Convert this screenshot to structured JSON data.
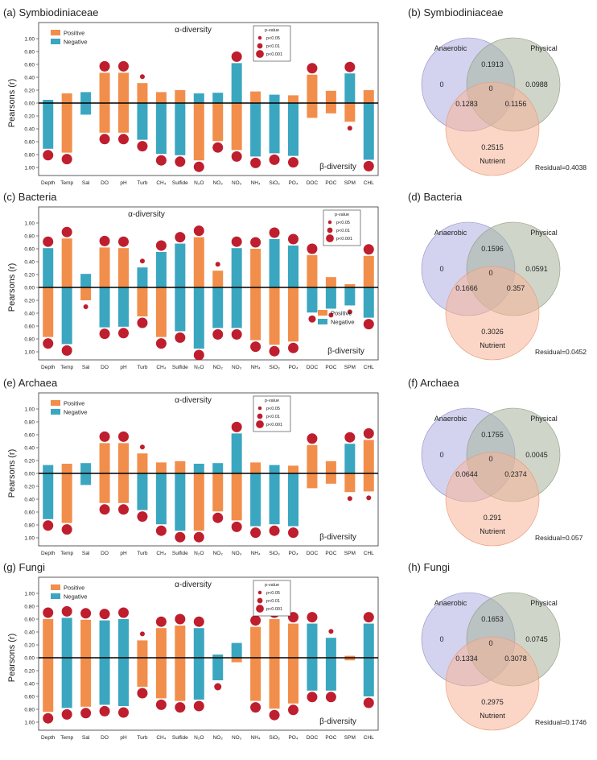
{
  "colors": {
    "positive": "#F28E4B",
    "negative": "#3BA6C0",
    "dot": "#BE1E2D",
    "anaerobic": "#A8A8E0",
    "physical": "#A7B59C",
    "nutrient": "#F7B597"
  },
  "common": {
    "ylabel": "Pearsons (r)",
    "yticks": [
      "1.00",
      "0.80",
      "0.60",
      "0.40",
      "0.20",
      "0.00",
      "0.20",
      "0.40",
      "0.60",
      "0.80",
      "1.00"
    ],
    "categories": [
      "Depth",
      "Temp",
      "Sal",
      "DO",
      "pH",
      "Turb",
      "CH₄",
      "Sulfide",
      "N₂O",
      "NO₂",
      "NO₃",
      "NH₄",
      "SiO₃",
      "PO₄",
      "DOC",
      "POC",
      "SPM",
      "CHL"
    ],
    "legend_positive": "Positive",
    "legend_negative": "Negative",
    "pvalue_title": "p-value",
    "pvalue_labels": [
      "p<0.05",
      "p<0.01",
      "p<0.001"
    ],
    "alpha_label": "α-diversity",
    "beta_label": "β-diversity",
    "venn_labels": {
      "anaerobic": "Anaerobic",
      "physical": "Physical",
      "nutrient": "Nutrient"
    }
  },
  "chart_data": [
    {
      "type": "bar",
      "title": "(a) Symbiodiniaceae",
      "ylim": [
        -1,
        1
      ],
      "alpha": {
        "values": [
          0.05,
          0.15,
          0.17,
          0.47,
          0.47,
          0.31,
          0.17,
          0.2,
          0.15,
          0.16,
          0.62,
          0.18,
          0.13,
          0.12,
          0.44,
          0.19,
          0.46,
          0.2
        ],
        "signs": [
          "N",
          "P",
          "N",
          "P",
          "P",
          "P",
          "P",
          "P",
          "N",
          "N",
          "N",
          "P",
          "N",
          "P",
          "P",
          "P",
          "N",
          "P"
        ],
        "sig": [
          0,
          0,
          0,
          3,
          3,
          1,
          0,
          0,
          0,
          0,
          3,
          0,
          0,
          0,
          3,
          0,
          3,
          0
        ]
      },
      "beta": {
        "values": [
          0.71,
          0.77,
          0.18,
          0.46,
          0.46,
          0.57,
          0.79,
          0.81,
          0.89,
          0.59,
          0.73,
          0.83,
          0.78,
          0.82,
          0.23,
          0.16,
          0.29,
          0.88
        ],
        "signs": [
          "N",
          "P",
          "N",
          "P",
          "P",
          "N",
          "N",
          "N",
          "P",
          "P",
          "P",
          "N",
          "N",
          "N",
          "P",
          "P",
          "P",
          "N"
        ],
        "sig": [
          3,
          3,
          0,
          3,
          3,
          3,
          3,
          3,
          3,
          3,
          3,
          3,
          3,
          3,
          0,
          0,
          1,
          3
        ]
      },
      "legend_y": "top",
      "alpha_pos": "top",
      "beta_pos": "bottom"
    },
    {
      "type": "bar",
      "title": "(c) Bacteria",
      "ylim": [
        -1,
        1
      ],
      "alpha": {
        "values": [
          0.61,
          0.76,
          0.21,
          0.62,
          0.61,
          0.31,
          0.55,
          0.68,
          0.78,
          0.26,
          0.61,
          0.6,
          0.75,
          0.65,
          0.5,
          0.16,
          0.05,
          0.49
        ],
        "signs": [
          "N",
          "P",
          "N",
          "P",
          "P",
          "N",
          "N",
          "N",
          "P",
          "P",
          "N",
          "P",
          "N",
          "N",
          "P",
          "P",
          "P",
          "P"
        ],
        "sig": [
          3,
          3,
          0,
          3,
          3,
          1,
          3,
          3,
          3,
          1,
          3,
          3,
          3,
          3,
          3,
          0,
          0,
          3
        ]
      },
      "beta": {
        "values": [
          0.77,
          0.88,
          0.2,
          0.62,
          0.61,
          0.45,
          0.77,
          0.68,
          0.95,
          0.63,
          0.63,
          0.82,
          0.89,
          0.84,
          0.39,
          0.33,
          0.28,
          0.47
        ],
        "signs": [
          "P",
          "N",
          "P",
          "N",
          "N",
          "P",
          "P",
          "N",
          "N",
          "N",
          "N",
          "P",
          "P",
          "P",
          "N",
          "N",
          "N",
          "N"
        ],
        "sig": [
          3,
          3,
          1,
          3,
          3,
          3,
          3,
          3,
          3,
          3,
          3,
          3,
          3,
          3,
          2,
          1,
          1,
          3
        ]
      },
      "legend_y": "middle",
      "alpha_pos": "top",
      "beta_pos": "bottom"
    },
    {
      "type": "bar",
      "title": "(e) Archaea",
      "ylim": [
        -1,
        1
      ],
      "alpha": {
        "values": [
          0.13,
          0.15,
          0.16,
          0.47,
          0.47,
          0.31,
          0.17,
          0.19,
          0.15,
          0.16,
          0.62,
          0.17,
          0.13,
          0.12,
          0.44,
          0.19,
          0.46,
          0.52
        ],
        "signs": [
          "N",
          "P",
          "N",
          "P",
          "P",
          "P",
          "P",
          "P",
          "N",
          "N",
          "N",
          "P",
          "N",
          "P",
          "P",
          "P",
          "N",
          "P"
        ],
        "sig": [
          0,
          0,
          0,
          3,
          3,
          1,
          0,
          0,
          0,
          0,
          3,
          0,
          0,
          0,
          3,
          0,
          3,
          3
        ]
      },
      "beta": {
        "values": [
          0.71,
          0.77,
          0.18,
          0.46,
          0.46,
          0.57,
          0.79,
          0.89,
          0.89,
          0.59,
          0.73,
          0.82,
          0.79,
          0.82,
          0.23,
          0.16,
          0.29,
          0.28
        ],
        "signs": [
          "N",
          "P",
          "N",
          "P",
          "P",
          "N",
          "N",
          "N",
          "P",
          "P",
          "P",
          "N",
          "N",
          "N",
          "P",
          "P",
          "P",
          "P"
        ],
        "sig": [
          3,
          3,
          0,
          3,
          3,
          3,
          3,
          3,
          3,
          3,
          3,
          3,
          3,
          3,
          0,
          0,
          1,
          1
        ]
      },
      "legend_y": "top",
      "alpha_pos": "top",
      "beta_pos": "bottom"
    },
    {
      "type": "bar",
      "title": "(g) Fungi",
      "ylim": [
        -1,
        1
      ],
      "alpha": {
        "values": [
          0.6,
          0.62,
          0.59,
          0.58,
          0.6,
          0.27,
          0.46,
          0.5,
          0.46,
          0.05,
          0.23,
          0.48,
          0.6,
          0.53,
          0.53,
          0.31,
          0.03,
          0.53
        ],
        "signs": [
          "P",
          "N",
          "P",
          "N",
          "N",
          "P",
          "P",
          "P",
          "N",
          "N",
          "N",
          "P",
          "P",
          "P",
          "N",
          "N",
          "P",
          "N"
        ],
        "sig": [
          3,
          3,
          3,
          3,
          3,
          1,
          3,
          3,
          3,
          0,
          0,
          3,
          3,
          3,
          3,
          1,
          0,
          3
        ]
      },
      "beta": {
        "values": [
          0.84,
          0.78,
          0.76,
          0.73,
          0.75,
          0.45,
          0.63,
          0.67,
          0.65,
          0.35,
          0.07,
          0.67,
          0.79,
          0.71,
          0.51,
          0.51,
          0.04,
          0.6
        ],
        "signs": [
          "P",
          "N",
          "P",
          "N",
          "N",
          "P",
          "P",
          "P",
          "N",
          "N",
          "P",
          "P",
          "P",
          "P",
          "N",
          "N",
          "P",
          "N"
        ],
        "sig": [
          3,
          3,
          3,
          3,
          3,
          3,
          3,
          3,
          3,
          2,
          0,
          3,
          3,
          3,
          3,
          3,
          0,
          3
        ]
      },
      "legend_y": "top",
      "alpha_pos": "top",
      "beta_pos": "bottom"
    },
    {
      "type": "venn",
      "title": "(b) Symbiodiniaceae",
      "values": {
        "anaerobic_only": "0",
        "physical_only": "0.0988",
        "nutrient_only": "0.2515",
        "anaerobic_physical": "0.1913",
        "anaerobic_nutrient": "0.1283",
        "physical_nutrient": "0.1156",
        "all": "0"
      },
      "residual": "Residual=0.4038"
    },
    {
      "type": "venn",
      "title": "(d) Bacteria",
      "values": {
        "anaerobic_only": "0",
        "physical_only": "0.0591",
        "nutrient_only": "0.3026",
        "anaerobic_physical": "0.1596",
        "anaerobic_nutrient": "0.1666",
        "physical_nutrient": "0.357",
        "all": "0"
      },
      "residual": "Residual=0.0452"
    },
    {
      "type": "venn",
      "title": "(f) Archaea",
      "values": {
        "anaerobic_only": "0",
        "physical_only": "0.0045",
        "nutrient_only": "0.291",
        "anaerobic_physical": "0.1755",
        "anaerobic_nutrient": "0.0644",
        "physical_nutrient": "0.2374",
        "all": "0"
      },
      "residual": "Residual=0.057"
    },
    {
      "type": "venn",
      "title": "(h) Fungi",
      "values": {
        "anaerobic_only": "0",
        "physical_only": "0.0745",
        "nutrient_only": "0.2975",
        "anaerobic_physical": "0.1653",
        "anaerobic_nutrient": "0.1334",
        "physical_nutrient": "0.3078",
        "all": "0"
      },
      "residual": "Residual=0.1746"
    }
  ]
}
